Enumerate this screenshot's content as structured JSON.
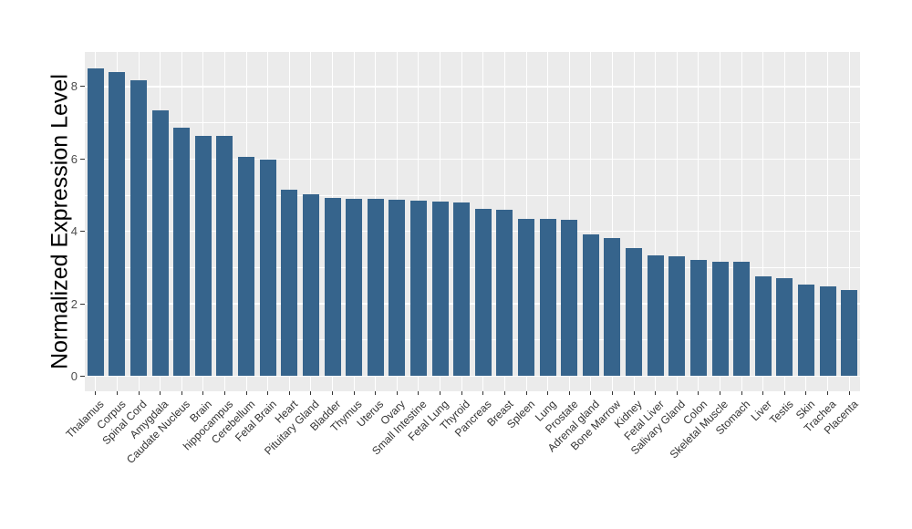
{
  "chart_data": {
    "type": "bar",
    "title": "",
    "xlabel": "",
    "ylabel": "Normalized Expression Level",
    "ylim": [
      0,
      8.96
    ],
    "yticks": [
      0,
      2,
      4,
      6,
      8
    ],
    "minor_gridlines_at": [
      1,
      3,
      5,
      7
    ],
    "grid": "on",
    "legend": "none",
    "categories": [
      "Thalamus",
      "Corpus",
      "Spinal Cord",
      "Amygdala",
      "Caudate Nucleus",
      "Brain",
      "hippocampus",
      "Cerebellum",
      "Fetal Brain",
      "Heart",
      "Pituitary Gland",
      "Bladder",
      "Thymus",
      "Uterus",
      "Ovary",
      "Small Intestine",
      "Fetal Lung",
      "Thyroid",
      "Pancreas",
      "Breast",
      "Spleen",
      "Lung",
      "Prostate",
      "Adrenal gland",
      "Bone Marrow",
      "Kidney",
      "Fetal Liver",
      "Salivary Gland",
      "Colon",
      "Skeletal Muscle",
      "Stomach",
      "Liver",
      "Testis",
      "Skin",
      "Trachea",
      "Placenta"
    ],
    "values": [
      8.51,
      8.41,
      8.17,
      7.35,
      6.86,
      6.64,
      6.63,
      6.05,
      5.97,
      5.16,
      5.02,
      4.92,
      4.91,
      4.89,
      4.87,
      4.84,
      4.82,
      4.79,
      4.62,
      4.59,
      4.35,
      4.34,
      4.32,
      3.92,
      3.82,
      3.54,
      3.34,
      3.31,
      3.21,
      3.16,
      3.16,
      2.75,
      2.7,
      2.53,
      2.48,
      2.38
    ],
    "colors": {
      "bar": "#36648C",
      "panel_background": "#EBEBEB",
      "gridline": "#FFFFFF",
      "y_tick_label": "#4d4d4d",
      "x_tick_label": "#333333",
      "axis_title": "#000000",
      "tick_mark": "#333333",
      "page_background": "#FFFFFF"
    }
  }
}
